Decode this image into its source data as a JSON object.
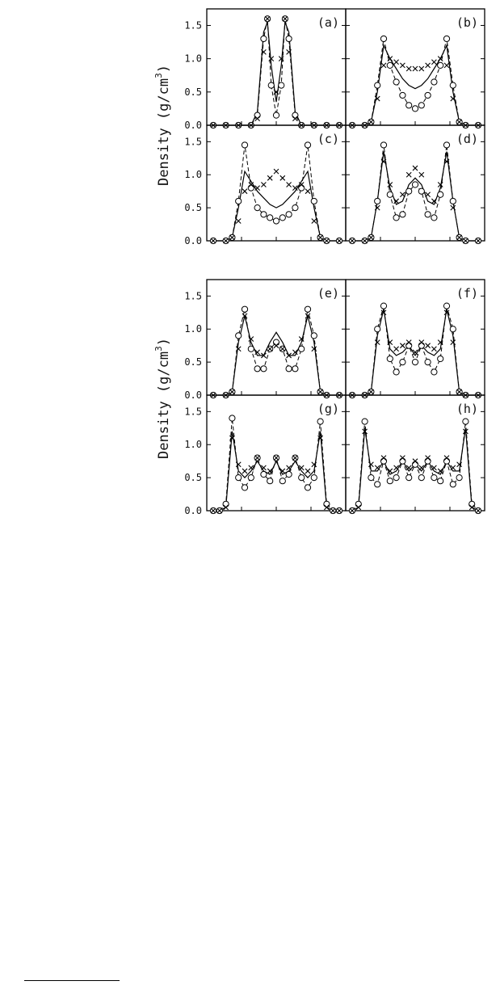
{
  "figure": {
    "ylabel": "Density (g/cm",
    "ylabel_sup": "3",
    "ylabel_close": ")"
  },
  "chart_data": [
    {
      "type": "line",
      "group": "top",
      "ylabel": "Density (g/cm3)",
      "ylim": [
        0,
        1.7
      ],
      "ytick_labels": [
        "0.0",
        "0.5",
        "1.0",
        "1.5"
      ],
      "panels": [
        {
          "label": "(a)",
          "x": [
            0.0,
            0.1,
            0.2,
            0.3,
            0.35,
            0.4,
            0.43,
            0.46,
            0.5,
            0.54,
            0.57,
            0.6,
            0.65,
            0.7,
            0.8,
            0.9,
            1.0
          ],
          "series": [
            {
              "marker": "solid",
              "values": [
                0,
                0,
                0,
                0,
                0.2,
                1.4,
                1.55,
                0.9,
                0.35,
                0.9,
                1.55,
                1.4,
                0.2,
                0,
                0,
                0,
                0
              ]
            },
            {
              "marker": "circle",
              "values": [
                0,
                0,
                0,
                0,
                0.15,
                1.3,
                1.6,
                0.6,
                0.15,
                0.6,
                1.6,
                1.3,
                0.15,
                0,
                0,
                0,
                0
              ]
            },
            {
              "marker": "x",
              "values": [
                0,
                0,
                0,
                0,
                0.1,
                1.1,
                1.6,
                1.0,
                0.5,
                1.0,
                1.6,
                1.1,
                0.1,
                0,
                0,
                0,
                0
              ]
            }
          ]
        },
        {
          "label": "(b)",
          "x": [
            0.0,
            0.1,
            0.15,
            0.2,
            0.25,
            0.3,
            0.35,
            0.4,
            0.45,
            0.5,
            0.55,
            0.6,
            0.65,
            0.7,
            0.75,
            0.8,
            0.85,
            0.9,
            1.0
          ],
          "series": [
            {
              "marker": "solid",
              "values": [
                0,
                0,
                0.05,
                0.5,
                1.2,
                1.0,
                0.85,
                0.7,
                0.6,
                0.55,
                0.6,
                0.7,
                0.85,
                1.0,
                1.2,
                0.5,
                0.05,
                0,
                0
              ]
            },
            {
              "marker": "circle",
              "values": [
                0,
                0,
                0.05,
                0.6,
                1.3,
                0.9,
                0.65,
                0.45,
                0.3,
                0.25,
                0.3,
                0.45,
                0.65,
                0.9,
                1.3,
                0.6,
                0.05,
                0,
                0
              ]
            },
            {
              "marker": "x",
              "values": [
                0,
                0,
                0.05,
                0.4,
                0.9,
                1.0,
                0.95,
                0.9,
                0.85,
                0.85,
                0.85,
                0.9,
                0.95,
                1.0,
                0.9,
                0.4,
                0.05,
                0,
                0
              ]
            }
          ]
        },
        {
          "label": "(c)",
          "x": [
            0.0,
            0.1,
            0.15,
            0.2,
            0.25,
            0.3,
            0.35,
            0.4,
            0.45,
            0.5,
            0.55,
            0.6,
            0.65,
            0.7,
            0.75,
            0.8,
            0.85,
            0.9,
            1.0
          ],
          "series": [
            {
              "marker": "solid",
              "values": [
                0,
                0,
                0.05,
                0.5,
                1.05,
                0.9,
                0.75,
                0.65,
                0.55,
                0.5,
                0.55,
                0.65,
                0.75,
                0.9,
                1.05,
                0.5,
                0.05,
                0,
                0
              ]
            },
            {
              "marker": "circle",
              "values": [
                0,
                0,
                0.05,
                0.6,
                1.45,
                0.8,
                0.5,
                0.4,
                0.35,
                0.3,
                0.35,
                0.4,
                0.5,
                0.8,
                1.45,
                0.6,
                0.05,
                0,
                0
              ]
            },
            {
              "marker": "x",
              "values": [
                0,
                0,
                0.05,
                0.3,
                0.75,
                0.85,
                0.8,
                0.85,
                0.95,
                1.05,
                0.95,
                0.85,
                0.8,
                0.85,
                0.75,
                0.3,
                0.05,
                0,
                0
              ]
            }
          ]
        },
        {
          "label": "(d)",
          "x": [
            0.0,
            0.1,
            0.15,
            0.2,
            0.25,
            0.3,
            0.35,
            0.4,
            0.45,
            0.5,
            0.55,
            0.6,
            0.65,
            0.7,
            0.75,
            0.8,
            0.85,
            0.9,
            1.0
          ],
          "series": [
            {
              "marker": "solid",
              "values": [
                0,
                0,
                0.05,
                0.6,
                1.35,
                0.8,
                0.55,
                0.6,
                0.85,
                0.95,
                0.85,
                0.6,
                0.55,
                0.8,
                1.35,
                0.6,
                0.05,
                0,
                0
              ]
            },
            {
              "marker": "circle",
              "values": [
                0,
                0,
                0.05,
                0.6,
                1.45,
                0.7,
                0.35,
                0.4,
                0.75,
                0.85,
                0.75,
                0.4,
                0.35,
                0.7,
                1.45,
                0.6,
                0.05,
                0,
                0
              ]
            },
            {
              "marker": "x",
              "values": [
                0,
                0,
                0.05,
                0.5,
                1.2,
                0.85,
                0.6,
                0.7,
                1.0,
                1.1,
                1.0,
                0.7,
                0.6,
                0.85,
                1.2,
                0.5,
                0.05,
                0,
                0
              ]
            }
          ]
        }
      ]
    },
    {
      "type": "line",
      "group": "bottom",
      "ylabel": "Density (g/cm3)",
      "ylim": [
        0,
        1.7
      ],
      "ytick_labels": [
        "0.0",
        "0.5",
        "1.0",
        "1.5"
      ],
      "panels": [
        {
          "label": "(e)",
          "x": [
            0.0,
            0.1,
            0.15,
            0.2,
            0.25,
            0.3,
            0.35,
            0.4,
            0.45,
            0.5,
            0.55,
            0.6,
            0.65,
            0.7,
            0.75,
            0.8,
            0.85,
            0.9,
            1.0
          ],
          "series": [
            {
              "marker": "solid",
              "values": [
                0,
                0,
                0.05,
                0.8,
                1.2,
                0.8,
                0.6,
                0.6,
                0.8,
                0.95,
                0.8,
                0.6,
                0.6,
                0.8,
                1.2,
                0.8,
                0.05,
                0,
                0
              ]
            },
            {
              "marker": "circle",
              "values": [
                0,
                0,
                0.05,
                0.9,
                1.3,
                0.7,
                0.4,
                0.4,
                0.7,
                0.8,
                0.7,
                0.4,
                0.4,
                0.7,
                1.3,
                0.9,
                0.05,
                0,
                0
              ]
            },
            {
              "marker": "x",
              "values": [
                0,
                0,
                0.05,
                0.7,
                1.2,
                0.85,
                0.65,
                0.6,
                0.7,
                0.75,
                0.7,
                0.6,
                0.65,
                0.85,
                1.2,
                0.7,
                0.05,
                0,
                0
              ]
            }
          ]
        },
        {
          "label": "(f)",
          "x": [
            0.0,
            0.1,
            0.15,
            0.2,
            0.25,
            0.3,
            0.35,
            0.4,
            0.45,
            0.5,
            0.55,
            0.6,
            0.65,
            0.7,
            0.75,
            0.8,
            0.85,
            0.9,
            1.0
          ],
          "series": [
            {
              "marker": "solid",
              "values": [
                0,
                0,
                0.05,
                0.9,
                1.3,
                0.7,
                0.6,
                0.65,
                0.75,
                0.6,
                0.75,
                0.65,
                0.6,
                0.7,
                1.3,
                0.9,
                0.05,
                0,
                0
              ]
            },
            {
              "marker": "circle",
              "values": [
                0,
                0,
                0.05,
                1.0,
                1.35,
                0.55,
                0.35,
                0.5,
                0.75,
                0.5,
                0.75,
                0.5,
                0.35,
                0.55,
                1.35,
                1.0,
                0.05,
                0,
                0
              ]
            },
            {
              "marker": "x",
              "values": [
                0,
                0,
                0.05,
                0.8,
                1.25,
                0.8,
                0.7,
                0.75,
                0.8,
                0.65,
                0.8,
                0.75,
                0.7,
                0.8,
                1.25,
                0.8,
                0.05,
                0,
                0
              ]
            }
          ]
        },
        {
          "label": "(g)",
          "x": [
            0.0,
            0.05,
            0.1,
            0.15,
            0.2,
            0.25,
            0.3,
            0.35,
            0.4,
            0.45,
            0.5,
            0.55,
            0.6,
            0.65,
            0.7,
            0.75,
            0.8,
            0.85,
            0.9,
            0.95,
            1.0
          ],
          "series": [
            {
              "marker": "solid",
              "values": [
                0,
                0,
                0.05,
                1.2,
                0.6,
                0.5,
                0.6,
                0.75,
                0.6,
                0.55,
                0.75,
                0.55,
                0.6,
                0.75,
                0.6,
                0.5,
                0.6,
                1.2,
                0.05,
                0,
                0
              ]
            },
            {
              "marker": "circle",
              "values": [
                0,
                0,
                0.1,
                1.4,
                0.5,
                0.35,
                0.5,
                0.8,
                0.55,
                0.45,
                0.8,
                0.45,
                0.55,
                0.8,
                0.5,
                0.35,
                0.5,
                1.35,
                0.1,
                0,
                0
              ]
            },
            {
              "marker": "x",
              "values": [
                0,
                0,
                0.05,
                1.1,
                0.7,
                0.6,
                0.65,
                0.8,
                0.65,
                0.6,
                0.8,
                0.6,
                0.65,
                0.8,
                0.65,
                0.6,
                0.7,
                1.1,
                0.05,
                0,
                0
              ]
            }
          ]
        },
        {
          "label": "(h)",
          "x": [
            0.0,
            0.05,
            0.1,
            0.15,
            0.2,
            0.25,
            0.3,
            0.35,
            0.4,
            0.45,
            0.5,
            0.55,
            0.6,
            0.65,
            0.7,
            0.75,
            0.8,
            0.85,
            0.9,
            0.95,
            1.0
          ],
          "series": [
            {
              "marker": "solid",
              "values": [
                0,
                0.05,
                1.25,
                0.6,
                0.6,
                0.75,
                0.55,
                0.6,
                0.75,
                0.6,
                0.7,
                0.6,
                0.75,
                0.6,
                0.55,
                0.75,
                0.6,
                0.6,
                1.25,
                0.05,
                0
              ]
            },
            {
              "marker": "circle",
              "values": [
                0,
                0.1,
                1.35,
                0.5,
                0.4,
                0.75,
                0.45,
                0.5,
                0.75,
                0.5,
                0.7,
                0.5,
                0.75,
                0.5,
                0.45,
                0.75,
                0.4,
                0.5,
                1.35,
                0.1,
                0
              ]
            },
            {
              "marker": "x",
              "values": [
                0,
                0.05,
                1.2,
                0.7,
                0.65,
                0.8,
                0.6,
                0.65,
                0.8,
                0.65,
                0.75,
                0.65,
                0.8,
                0.65,
                0.6,
                0.8,
                0.65,
                0.7,
                1.2,
                0.05,
                0
              ]
            }
          ]
        }
      ]
    }
  ]
}
